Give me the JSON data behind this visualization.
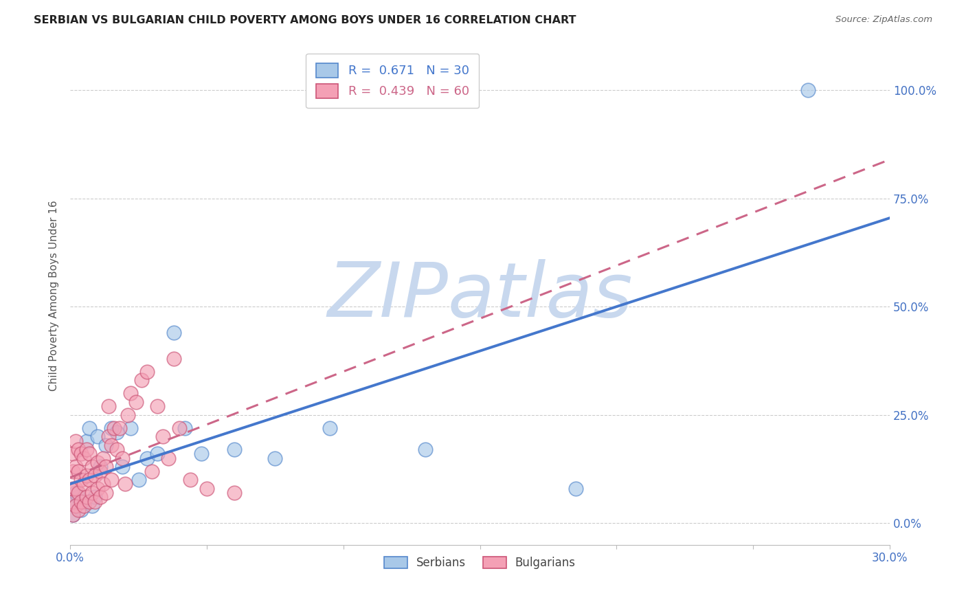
{
  "title": "SERBIAN VS BULGARIAN CHILD POVERTY AMONG BOYS UNDER 16 CORRELATION CHART",
  "source": "Source: ZipAtlas.com",
  "ylabel": "Child Poverty Among Boys Under 16",
  "xlim": [
    0.0,
    0.3
  ],
  "ylim": [
    -0.05,
    1.1
  ],
  "xtick_values": [
    0.0,
    0.05,
    0.1,
    0.15,
    0.2,
    0.25,
    0.3
  ],
  "xtick_labels_show": [
    "0.0%",
    "",
    "",
    "",
    "",
    "",
    "30.0%"
  ],
  "ytick_values": [
    0.0,
    0.25,
    0.5,
    0.75,
    1.0
  ],
  "ytick_labels": [
    "0.0%",
    "25.0%",
    "50.0%",
    "75.0%",
    "100.0%"
  ],
  "serbian_R": 0.671,
  "serbian_N": 30,
  "bulgarian_R": 0.439,
  "bulgarian_N": 60,
  "serbian_color": "#a8c8e8",
  "bulgarian_color": "#f4a0b5",
  "serbian_edge_color": "#5588cc",
  "bulgarian_edge_color": "#cc5577",
  "serbian_line_color": "#4477cc",
  "bulgarian_line_color": "#cc6688",
  "watermark": "ZIPatlas",
  "watermark_color": "#c8d8ee",
  "serbian_x": [
    0.001,
    0.001,
    0.002,
    0.002,
    0.003,
    0.004,
    0.005,
    0.006,
    0.007,
    0.008,
    0.009,
    0.01,
    0.011,
    0.013,
    0.015,
    0.017,
    0.019,
    0.022,
    0.025,
    0.028,
    0.032,
    0.038,
    0.042,
    0.048,
    0.06,
    0.075,
    0.095,
    0.13,
    0.185,
    0.27
  ],
  "serbian_y": [
    0.02,
    0.05,
    0.04,
    0.07,
    0.06,
    0.03,
    0.05,
    0.19,
    0.22,
    0.04,
    0.06,
    0.2,
    0.13,
    0.18,
    0.22,
    0.21,
    0.13,
    0.22,
    0.1,
    0.15,
    0.16,
    0.44,
    0.22,
    0.16,
    0.17,
    0.15,
    0.22,
    0.17,
    0.08,
    1.0
  ],
  "bulgarian_x": [
    0.001,
    0.001,
    0.001,
    0.001,
    0.001,
    0.002,
    0.002,
    0.002,
    0.002,
    0.003,
    0.003,
    0.003,
    0.003,
    0.004,
    0.004,
    0.004,
    0.005,
    0.005,
    0.005,
    0.006,
    0.006,
    0.006,
    0.007,
    0.007,
    0.007,
    0.008,
    0.008,
    0.009,
    0.009,
    0.01,
    0.01,
    0.011,
    0.011,
    0.012,
    0.012,
    0.013,
    0.013,
    0.014,
    0.014,
    0.015,
    0.015,
    0.016,
    0.017,
    0.018,
    0.019,
    0.02,
    0.021,
    0.022,
    0.024,
    0.026,
    0.028,
    0.03,
    0.032,
    0.034,
    0.036,
    0.038,
    0.04,
    0.044,
    0.05,
    0.06
  ],
  "bulgarian_y": [
    0.02,
    0.05,
    0.08,
    0.12,
    0.16,
    0.04,
    0.08,
    0.13,
    0.19,
    0.03,
    0.07,
    0.12,
    0.17,
    0.05,
    0.1,
    0.16,
    0.04,
    0.09,
    0.15,
    0.06,
    0.11,
    0.17,
    0.05,
    0.1,
    0.16,
    0.07,
    0.13,
    0.05,
    0.11,
    0.08,
    0.14,
    0.06,
    0.12,
    0.09,
    0.15,
    0.07,
    0.13,
    0.2,
    0.27,
    0.1,
    0.18,
    0.22,
    0.17,
    0.22,
    0.15,
    0.09,
    0.25,
    0.3,
    0.28,
    0.33,
    0.35,
    0.12,
    0.27,
    0.2,
    0.15,
    0.38,
    0.22,
    0.1,
    0.08,
    0.07
  ],
  "grid_color": "#cccccc",
  "background_color": "#ffffff"
}
